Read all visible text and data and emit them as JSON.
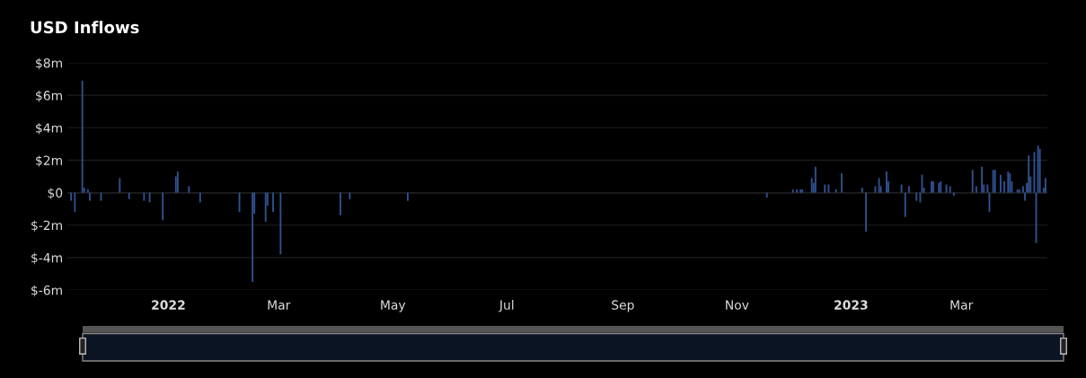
{
  "chart_data": {
    "type": "bar",
    "title": "USD Inflows",
    "x": [
      "2021-11-10",
      "2021-11-12",
      "2021-11-16",
      "2021-11-17",
      "2021-11-19",
      "2021-11-20",
      "2021-11-26",
      "2021-12-06",
      "2021-12-11",
      "2021-12-19",
      "2021-12-22",
      "2021-12-29",
      "2022-01-05",
      "2022-01-06",
      "2022-01-12",
      "2022-01-18",
      "2022-02-08",
      "2022-02-15",
      "2022-02-16",
      "2022-02-22",
      "2022-02-23",
      "2022-02-26",
      "2022-03-02",
      "2022-04-03",
      "2022-04-08",
      "2022-05-09",
      "2022-11-17",
      "2022-12-01",
      "2022-12-03",
      "2022-12-05",
      "2022-12-06",
      "2022-12-11",
      "2022-12-12",
      "2022-12-13",
      "2022-12-18",
      "2022-12-20",
      "2022-12-24",
      "2022-12-27",
      "2023-01-07",
      "2023-01-09",
      "2023-01-14",
      "2023-01-16",
      "2023-01-17",
      "2023-01-20",
      "2023-01-21",
      "2023-01-28",
      "2023-01-30",
      "2023-02-01",
      "2023-02-05",
      "2023-02-07",
      "2023-02-08",
      "2023-02-09",
      "2023-02-13",
      "2023-02-14",
      "2023-02-17",
      "2023-02-18",
      "2023-02-21",
      "2023-02-23",
      "2023-02-25",
      "2023-03-07",
      "2023-03-09",
      "2023-03-12",
      "2023-03-13",
      "2023-03-15",
      "2023-03-16",
      "2023-03-18",
      "2023-03-19",
      "2023-03-22",
      "2023-03-24",
      "2023-03-26",
      "2023-03-27",
      "2023-03-28",
      "2023-03-31",
      "2023-04-01",
      "2023-04-03",
      "2023-04-04",
      "2023-04-05",
      "2023-04-06",
      "2023-04-07",
      "2023-04-09",
      "2023-04-10",
      "2023-04-11",
      "2023-04-12",
      "2023-04-14",
      "2023-04-15"
    ],
    "values": [
      -0.5,
      -1.2,
      6.9,
      0.3,
      0.2,
      -0.5,
      -0.5,
      0.9,
      -0.4,
      -0.5,
      -0.6,
      -1.7,
      1.0,
      1.3,
      0.4,
      -0.6,
      -1.2,
      -5.5,
      -1.3,
      -1.8,
      -0.8,
      -1.2,
      -3.8,
      -1.4,
      -0.4,
      -0.5,
      -0.3,
      0.2,
      0.2,
      0.2,
      0.2,
      0.9,
      0.6,
      1.6,
      0.5,
      0.5,
      0.2,
      1.2,
      0.3,
      -2.4,
      0.4,
      0.9,
      0.4,
      1.3,
      0.7,
      0.5,
      -1.5,
      0.4,
      -0.5,
      -0.6,
      1.1,
      0.3,
      0.7,
      0.7,
      0.6,
      0.7,
      0.5,
      0.4,
      -0.2,
      1.4,
      0.4,
      1.6,
      0.5,
      0.5,
      -1.2,
      1.4,
      1.4,
      1.1,
      0.7,
      1.3,
      1.2,
      0.7,
      0.2,
      0.2,
      0.4,
      -0.5,
      0.6,
      2.3,
      1.0,
      2.5,
      -3.1,
      2.9,
      2.7,
      0.3,
      0.9
    ],
    "color": "#2f5290",
    "xlim": [
      "2021-11-08",
      "2023-04-16"
    ],
    "xticks": [
      {
        "value": "2022-01-01",
        "label": "2022"
      },
      {
        "value": "2022-03-01",
        "label": "Mar"
      },
      {
        "value": "2022-05-01",
        "label": "May"
      },
      {
        "value": "2022-07-01",
        "label": "Jul"
      },
      {
        "value": "2022-09-01",
        "label": "Sep"
      },
      {
        "value": "2022-11-01",
        "label": "Nov"
      },
      {
        "value": "2023-01-01",
        "label": "2023"
      },
      {
        "value": "2023-03-01",
        "label": "Mar"
      }
    ],
    "ylim": [
      -6,
      8
    ],
    "yticks": [
      {
        "value": -6,
        "label": "$-6m"
      },
      {
        "value": -4,
        "label": "$-4m"
      },
      {
        "value": -2,
        "label": "$-2m"
      },
      {
        "value": 0,
        "label": "$0"
      },
      {
        "value": 2,
        "label": "$2m"
      },
      {
        "value": 4,
        "label": "$4m"
      },
      {
        "value": 6,
        "label": "$6m"
      },
      {
        "value": 8,
        "label": "$8m"
      }
    ],
    "grid": "y"
  }
}
